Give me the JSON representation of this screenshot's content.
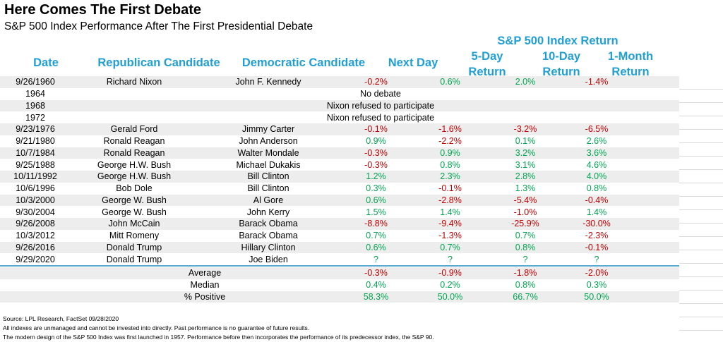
{
  "title": "Here Comes The First Debate",
  "subtitle": "S&P 500 Index Performance After The First Presidential Debate",
  "group_header": "S&P 500 Index Return",
  "headers": {
    "date": "Date",
    "republican": "Republican Candidate",
    "democratic": "Democratic Candidate",
    "next_day": "Next Day",
    "five_day_1": "5-Day",
    "five_day_2": "Return",
    "ten_day_1": "10-Day",
    "ten_day_2": "Return",
    "one_month_1": "1-Month",
    "one_month_2": "Return"
  },
  "rows": [
    {
      "date": "9/26/1960",
      "rep": "Richard Nixon",
      "dem": "John F. Kennedy",
      "nd": "-0.2%",
      "d5": "0.6%",
      "d10": "2.0%",
      "m1": "-1.4%"
    },
    {
      "date": "1964",
      "note": "No debate"
    },
    {
      "date": "1968",
      "note": "Nixon refused to participate"
    },
    {
      "date": "1972",
      "note": "Nixon refused to participate"
    },
    {
      "date": "9/23/1976",
      "rep": "Gerald Ford",
      "dem": "Jimmy Carter",
      "nd": "-0.1%",
      "d5": "-1.6%",
      "d10": "-3.2%",
      "m1": "-6.5%"
    },
    {
      "date": "9/21/1980",
      "rep": "Ronald Reagan",
      "dem": "John Anderson",
      "nd": "0.9%",
      "d5": "-2.2%",
      "d10": "0.1%",
      "m1": "2.6%"
    },
    {
      "date": "10/7/1984",
      "rep": "Ronald Reagan",
      "dem": "Walter Mondale",
      "nd": "-0.3%",
      "d5": "0.9%",
      "d10": "3.2%",
      "m1": "3.6%"
    },
    {
      "date": "9/25/1988",
      "rep": "George H.W. Bush",
      "dem": "Michael Dukakis",
      "nd": "-0.3%",
      "d5": "0.8%",
      "d10": "3.1%",
      "m1": "4.6%"
    },
    {
      "date": "10/11/1992",
      "rep": "George H.W. Bush",
      "dem": "Bill Clinton",
      "nd": "1.2%",
      "d5": "2.3%",
      "d10": "2.8%",
      "m1": "4.0%"
    },
    {
      "date": "10/6/1996",
      "rep": "Bob Dole",
      "dem": "Bill Clinton",
      "nd": "0.3%",
      "d5": "-0.1%",
      "d10": "1.3%",
      "m1": "0.8%"
    },
    {
      "date": "10/3/2000",
      "rep": "George W. Bush",
      "dem": "Al Gore",
      "nd": "0.6%",
      "d5": "-2.8%",
      "d10": "-5.4%",
      "m1": "-0.4%"
    },
    {
      "date": "9/30/2004",
      "rep": "George W. Bush",
      "dem": "John Kerry",
      "nd": "1.5%",
      "d5": "1.4%",
      "d10": "-1.0%",
      "m1": "1.4%"
    },
    {
      "date": "9/26/2008",
      "rep": "John McCain",
      "dem": "Barack Obama",
      "nd": "-8.8%",
      "d5": "-9.4%",
      "d10": "-25.9%",
      "m1": "-30.0%"
    },
    {
      "date": "10/3/2012",
      "rep": "Mitt Romeny",
      "dem": "Barack Obama",
      "nd": "0.7%",
      "d5": "-1.3%",
      "d10": "0.7%",
      "m1": "-2.3%"
    },
    {
      "date": "9/26/2016",
      "rep": "Donald Trump",
      "dem": "Hillary Clinton",
      "nd": "0.6%",
      "d5": "0.7%",
      "d10": "0.8%",
      "m1": "-0.1%"
    },
    {
      "date": "9/29/2020",
      "rep": "Donald Trump",
      "dem": "Joe Biden",
      "nd": "?",
      "d5": "?",
      "d10": "?",
      "m1": "?"
    }
  ],
  "summary": [
    {
      "label": "Average",
      "nd": "-0.3%",
      "d5": "-0.9%",
      "d10": "-1.8%",
      "m1": "-2.0%"
    },
    {
      "label": "Median",
      "nd": "0.4%",
      "d5": "0.2%",
      "d10": "0.8%",
      "m1": "0.3%"
    },
    {
      "label": "% Positive",
      "nd": "58.3%",
      "d5": "50.0%",
      "d10": "66.7%",
      "m1": "50.0%"
    }
  ],
  "footnotes": [
    "Source: LPL Research, FactSet 09/28/2020",
    "All indexes are unmanaged and cannot be invested into directly. Past performance is no guarantee of future results.",
    "The modern design of the S&P 500 Index was first launched in 1957. Performance before then incorporates the performance of its predecessor index, the S&P 90."
  ],
  "colors": {
    "header": "#1f9fd4",
    "negative": "#c00000",
    "positive": "#00a651",
    "band": "#ededed",
    "rule": "#5aa9d0"
  }
}
